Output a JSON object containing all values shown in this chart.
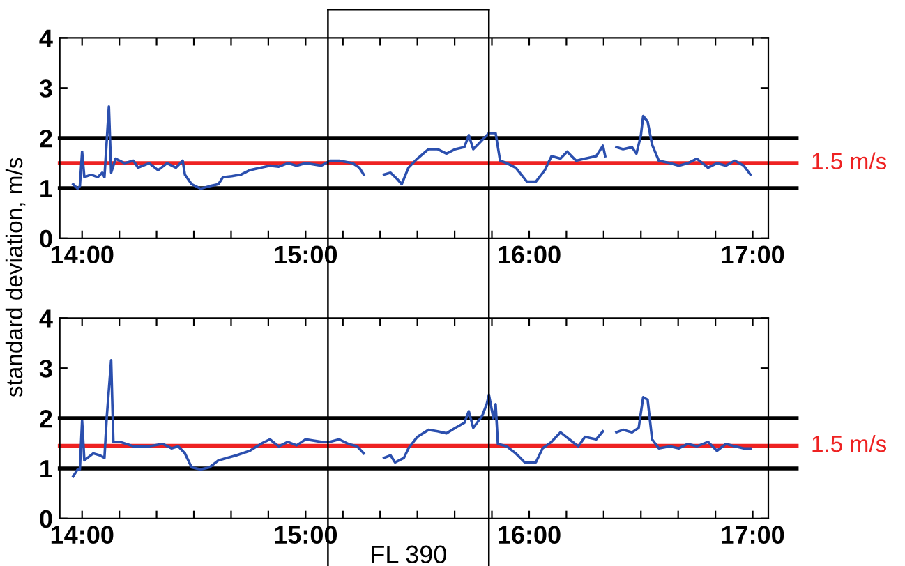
{
  "chart_data": [
    {
      "type": "line",
      "ylabel": "standard deviation, m/s",
      "xlim": [
        13.9,
        17.07
      ],
      "ylim": [
        0,
        4
      ],
      "yticks": [
        0,
        1,
        2,
        3,
        4
      ],
      "xticks": [
        {
          "value": 14,
          "label": "14:00"
        },
        {
          "value": 14.1667,
          "label": null
        },
        {
          "value": 14.3333,
          "label": null
        },
        {
          "value": 14.5,
          "label": null
        },
        {
          "value": 14.6667,
          "label": null
        },
        {
          "value": 14.8333,
          "label": null
        },
        {
          "value": 15,
          "label": "15:00"
        },
        {
          "value": 15.1667,
          "label": null
        },
        {
          "value": 15.3333,
          "label": null
        },
        {
          "value": 15.5,
          "label": null
        },
        {
          "value": 15.6667,
          "label": null
        },
        {
          "value": 15.8333,
          "label": null
        },
        {
          "value": 16,
          "label": "16:00"
        },
        {
          "value": 16.1667,
          "label": null
        },
        {
          "value": 16.3333,
          "label": null
        },
        {
          "value": 16.5,
          "label": null
        },
        {
          "value": 16.6667,
          "label": null
        },
        {
          "value": 16.8333,
          "label": null
        },
        {
          "value": 17,
          "label": "17:00"
        }
      ],
      "grid": false,
      "legend": false,
      "ref_lines": [
        {
          "axis": "y",
          "value": 1,
          "color": "#000000"
        },
        {
          "axis": "y",
          "value": 2,
          "color": "#000000"
        },
        {
          "axis": "y",
          "value": 1.5,
          "color": "#ee2222",
          "label": "1.5 m/s"
        },
        {
          "axis": "x",
          "value": 15.1,
          "color": "#000000"
        },
        {
          "axis": "x",
          "value": 15.82,
          "color": "#000000"
        }
      ],
      "series": [
        {
          "color": "#2b4fae",
          "x": [
            13.96,
            13.98,
            13.99,
            14.0,
            14.01,
            14.04,
            14.07,
            14.09,
            14.1,
            14.12,
            14.13,
            14.15,
            14.19,
            14.23,
            14.25,
            14.3,
            14.34,
            14.38,
            14.42,
            14.45,
            14.46,
            14.49,
            14.53,
            14.57,
            14.61,
            14.63,
            14.67,
            14.71,
            14.75,
            14.8,
            14.84,
            14.88,
            14.92,
            14.96,
            15.0,
            15.07,
            15.11,
            15.15,
            15.21,
            15.24,
            15.26,
            15.3,
            15.35,
            15.38,
            15.41,
            15.43,
            15.46,
            15.5,
            15.55,
            15.59,
            15.63,
            15.67,
            15.71,
            15.73,
            15.75,
            15.8,
            15.82,
            15.85,
            15.87,
            15.9,
            15.94,
            15.99,
            16.03,
            16.07,
            16.1,
            16.14,
            16.17,
            16.21,
            16.25,
            16.3,
            16.33,
            16.34,
            16.36,
            16.39,
            16.42,
            16.46,
            16.48,
            16.5,
            16.51,
            16.53,
            16.55,
            16.58,
            16.63,
            16.67,
            16.71,
            16.75,
            16.8,
            16.84,
            16.88,
            16.92,
            16.96,
            16.99
          ],
          "values": [
            1.08,
            0.99,
            1.04,
            1.73,
            1.22,
            1.27,
            1.22,
            1.31,
            1.22,
            2.63,
            1.31,
            1.59,
            1.5,
            1.55,
            1.41,
            1.5,
            1.36,
            1.5,
            1.41,
            1.55,
            1.27,
            1.08,
            0.99,
            1.04,
            1.08,
            1.22,
            1.24,
            1.27,
            1.36,
            1.41,
            1.45,
            1.43,
            1.5,
            1.45,
            1.5,
            1.45,
            1.55,
            1.55,
            1.5,
            1.41,
            1.27,
            null,
            1.27,
            1.31,
            1.18,
            1.08,
            1.41,
            1.59,
            1.78,
            1.78,
            1.69,
            1.78,
            1.82,
            2.06,
            1.78,
            2.01,
            2.1,
            2.1,
            1.55,
            1.5,
            1.41,
            1.13,
            1.13,
            1.36,
            1.64,
            1.59,
            1.73,
            1.55,
            1.59,
            1.64,
            1.85,
            1.64,
            null,
            1.82,
            1.78,
            1.82,
            1.69,
            2.06,
            2.44,
            2.33,
            1.87,
            1.55,
            1.5,
            1.45,
            1.5,
            1.59,
            1.41,
            1.5,
            1.45,
            1.55,
            1.45,
            1.27
          ]
        }
      ]
    },
    {
      "type": "line",
      "xlim": [
        13.9,
        17.07
      ],
      "ylim": [
        0,
        4
      ],
      "yticks": [
        0,
        1,
        2,
        3,
        4
      ],
      "xticks": [
        {
          "value": 14,
          "label": "14:00"
        },
        {
          "value": 14.1667,
          "label": null
        },
        {
          "value": 14.3333,
          "label": null
        },
        {
          "value": 14.5,
          "label": null
        },
        {
          "value": 14.6667,
          "label": null
        },
        {
          "value": 14.8333,
          "label": null
        },
        {
          "value": 15,
          "label": "15:00"
        },
        {
          "value": 15.1667,
          "label": null
        },
        {
          "value": 15.3333,
          "label": null
        },
        {
          "value": 15.5,
          "label": null
        },
        {
          "value": 15.6667,
          "label": null
        },
        {
          "value": 15.8333,
          "label": null
        },
        {
          "value": 16,
          "label": "16:00"
        },
        {
          "value": 16.1667,
          "label": null
        },
        {
          "value": 16.3333,
          "label": null
        },
        {
          "value": 16.5,
          "label": null
        },
        {
          "value": 16.6667,
          "label": null
        },
        {
          "value": 16.8333,
          "label": null
        },
        {
          "value": 17,
          "label": "17:00"
        }
      ],
      "grid": false,
      "legend": false,
      "ref_lines": [
        {
          "axis": "y",
          "value": 1,
          "color": "#000000"
        },
        {
          "axis": "y",
          "value": 2,
          "color": "#000000"
        },
        {
          "axis": "y",
          "value": 1.45,
          "color": "#ee2222",
          "label": "1.5 m/s"
        },
        {
          "axis": "x",
          "value": 15.1,
          "color": "#000000"
        },
        {
          "axis": "x",
          "value": 15.82,
          "color": "#000000"
        }
      ],
      "annotations": [
        "FL 390"
      ],
      "series": [
        {
          "color": "#2b4fae",
          "x": [
            13.96,
            13.98,
            13.99,
            14.0,
            14.01,
            14.05,
            14.08,
            14.1,
            14.11,
            14.13,
            14.14,
            14.17,
            14.23,
            14.3,
            14.36,
            14.4,
            14.43,
            14.46,
            14.49,
            14.53,
            14.57,
            14.61,
            14.65,
            14.69,
            14.75,
            14.8,
            14.84,
            14.88,
            14.92,
            14.96,
            15.0,
            15.07,
            15.11,
            15.15,
            15.19,
            15.23,
            15.26,
            15.3,
            15.35,
            15.38,
            15.4,
            15.44,
            15.46,
            15.5,
            15.55,
            15.59,
            15.63,
            15.67,
            15.71,
            15.73,
            15.75,
            15.79,
            15.81,
            15.82,
            15.84,
            15.85,
            15.86,
            15.9,
            15.94,
            15.98,
            16.03,
            16.06,
            16.1,
            16.14,
            16.18,
            16.22,
            16.25,
            16.3,
            16.33,
            16.36,
            16.39,
            16.42,
            16.46,
            16.49,
            16.51,
            16.53,
            16.55,
            16.58,
            16.63,
            16.67,
            16.71,
            16.75,
            16.8,
            16.84,
            16.88,
            16.92,
            16.96,
            16.99
          ],
          "values": [
            0.84,
            0.98,
            0.98,
            1.95,
            1.16,
            1.3,
            1.26,
            1.21,
            2.0,
            3.16,
            1.53,
            1.53,
            1.44,
            1.44,
            1.49,
            1.4,
            1.44,
            1.3,
            1.02,
            0.98,
            1.02,
            1.16,
            1.21,
            1.26,
            1.35,
            1.49,
            1.58,
            1.44,
            1.53,
            1.46,
            1.58,
            1.53,
            1.53,
            1.58,
            1.49,
            1.44,
            1.3,
            null,
            1.21,
            1.26,
            1.12,
            1.21,
            1.4,
            1.63,
            1.77,
            1.74,
            1.7,
            1.81,
            1.91,
            2.14,
            1.81,
            2.05,
            2.28,
            2.47,
            2.0,
            2.28,
            1.49,
            1.44,
            1.3,
            1.12,
            1.12,
            1.4,
            1.53,
            1.72,
            1.58,
            1.44,
            1.63,
            1.58,
            1.74,
            null,
            1.72,
            1.77,
            1.72,
            1.81,
            2.42,
            2.37,
            1.58,
            1.4,
            1.44,
            1.4,
            1.49,
            1.44,
            1.53,
            1.35,
            1.49,
            1.44,
            1.4,
            1.4
          ]
        }
      ]
    }
  ]
}
